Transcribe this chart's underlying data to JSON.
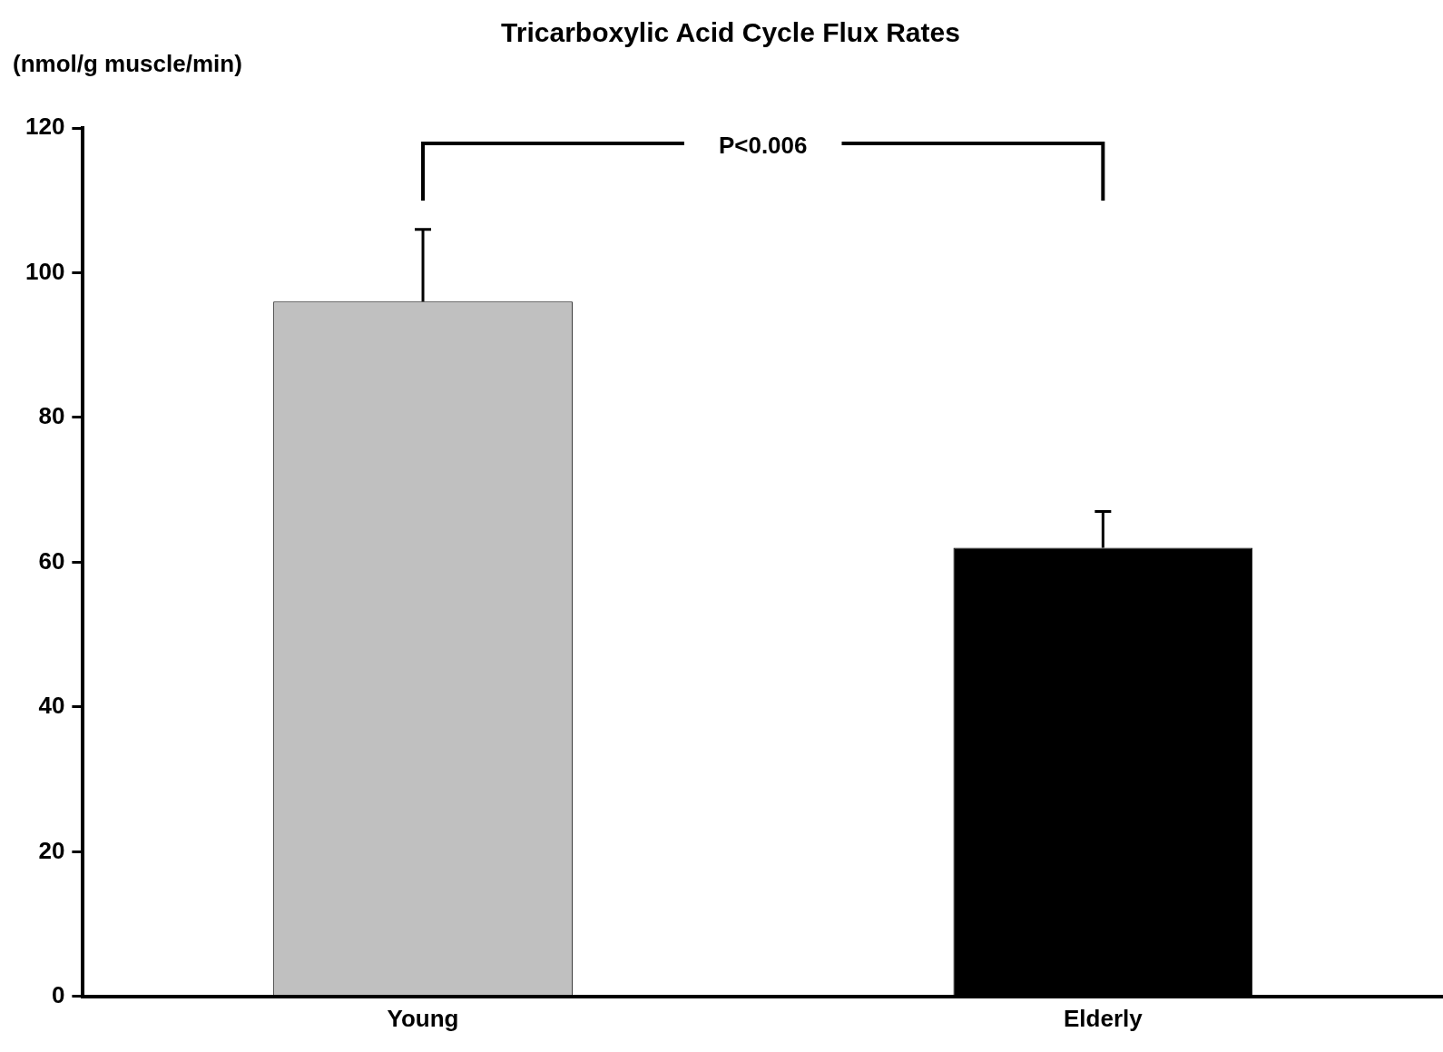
{
  "chart_data": {
    "type": "bar",
    "title": "Tricarboxylic Acid Cycle Flux Rates",
    "ylabel": "(nmol/g muscle/min)",
    "categories": [
      "Young",
      "Elderly"
    ],
    "values": [
      96,
      62
    ],
    "colors": [
      "#c0c0c0",
      "#000000"
    ],
    "errors": [
      [
        96,
        106
      ],
      [
        62,
        67
      ]
    ],
    "ylim": [
      0,
      120
    ],
    "yticks": [
      0,
      20,
      40,
      60,
      80,
      100,
      120
    ],
    "annotations": [
      "P<0.006"
    ]
  }
}
